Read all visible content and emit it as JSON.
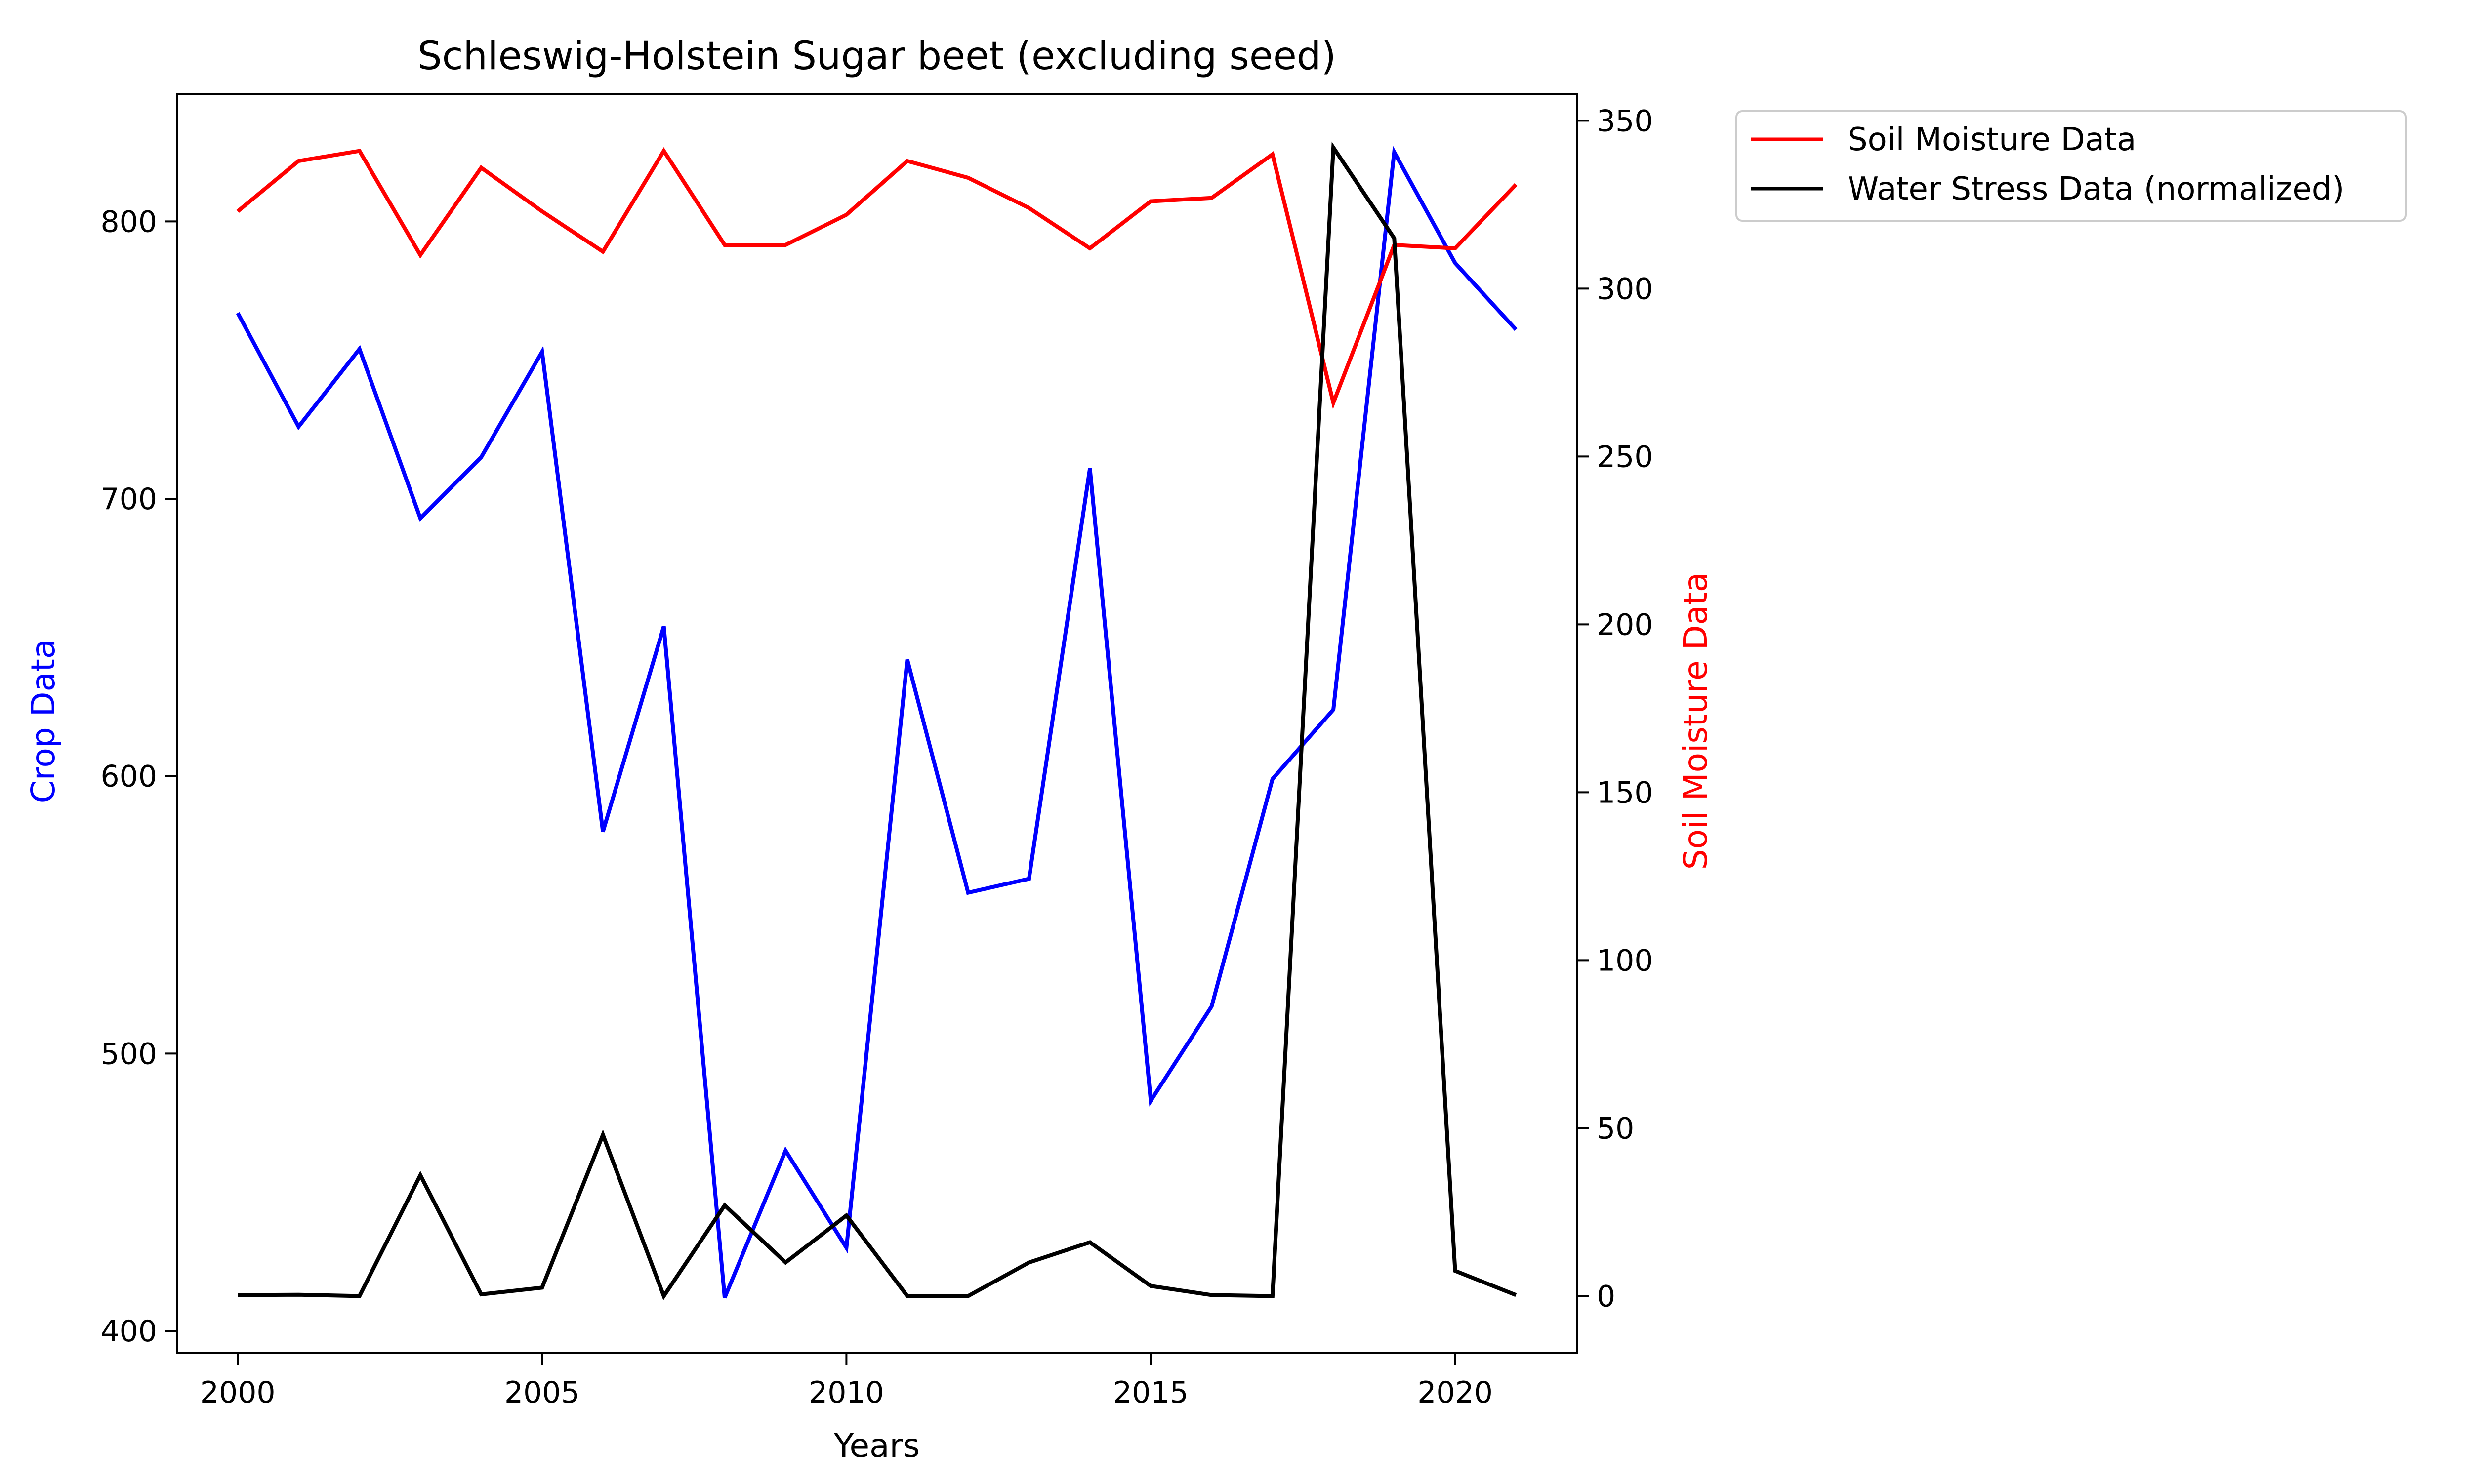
{
  "chart_data": {
    "type": "line",
    "title": "Schleswig-Holstein Sugar beet (excluding seed)",
    "xlabel": "Years",
    "ylabel_left": "Crop Data",
    "ylabel_right": "Soil Moisture Data",
    "xlim": [
      1999,
      2022
    ],
    "ylim_left": [
      392,
      846
    ],
    "ylim_right": [
      -17,
      358
    ],
    "xticks": [
      2000,
      2005,
      2010,
      2015,
      2020
    ],
    "yticks_left": [
      400,
      500,
      600,
      700,
      800
    ],
    "yticks_right": [
      0,
      50,
      100,
      150,
      200,
      250,
      300,
      350
    ],
    "grid": false,
    "legend_position": "outside-top-right",
    "x": [
      2000,
      2001,
      2002,
      2003,
      2004,
      2005,
      2006,
      2007,
      2008,
      2009,
      2010,
      2011,
      2012,
      2013,
      2014,
      2015,
      2016,
      2017,
      2018,
      2019,
      2020,
      2021
    ],
    "series": [
      {
        "name": "",
        "axis": "left",
        "color": "#0000ff",
        "values": [
          767,
          726,
          754,
          693,
          715,
          753,
          580,
          654,
          412,
          465,
          430,
          642,
          558,
          563,
          711,
          483,
          517,
          599,
          624,
          825,
          785,
          761
        ]
      },
      {
        "name": "Soil Moisture Data",
        "axis": "right",
        "color": "#ff0000",
        "values": [
          323,
          338,
          341,
          310,
          336,
          323,
          311,
          341,
          313,
          313,
          322,
          338,
          333,
          324,
          312,
          326,
          327,
          340,
          266,
          313,
          312,
          331
        ]
      },
      {
        "name": "Water Stress Data (normalized)",
        "axis": "right",
        "color": "#000000",
        "values": [
          0.3,
          0.4,
          0,
          36,
          0.5,
          2.5,
          48,
          0,
          27,
          10,
          24,
          0,
          0,
          10,
          16,
          3,
          0.3,
          0,
          342,
          315,
          7.5,
          0.3
        ]
      }
    ]
  }
}
